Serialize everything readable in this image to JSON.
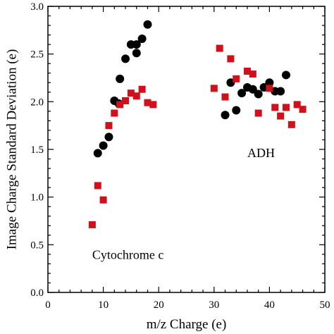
{
  "chart_data": {
    "type": "scatter",
    "title": "",
    "xlabel": "m/z Charge (e)",
    "ylabel": "Image Charge Standard Deviation (e)",
    "xlim": [
      0,
      50
    ],
    "ylim": [
      0.0,
      3.0
    ],
    "x_ticks": [
      0,
      10,
      20,
      30,
      40,
      50
    ],
    "y_ticks": [
      "0.0",
      "0.5",
      "1.0",
      "1.5",
      "2.0",
      "2.5",
      "3.0"
    ],
    "grid": false,
    "legend": "none",
    "annotations": [
      {
        "text": "Cytochrome c",
        "x": 8,
        "y": 0.35
      },
      {
        "text": "ADH",
        "x": 36,
        "y": 1.42
      }
    ],
    "series": [
      {
        "marker": "circle",
        "color": "#000000",
        "points": [
          [
            9,
            1.46
          ],
          [
            10,
            1.54
          ],
          [
            11,
            1.63
          ],
          [
            12,
            2.01
          ],
          [
            12.8,
            1.98
          ],
          [
            13,
            2.24
          ],
          [
            14,
            2.45
          ],
          [
            15,
            2.6
          ],
          [
            16,
            2.51
          ],
          [
            16,
            2.6
          ],
          [
            17,
            2.66
          ],
          [
            18,
            2.81
          ],
          [
            32,
            1.86
          ],
          [
            33,
            2.2
          ],
          [
            34,
            1.91
          ],
          [
            35,
            2.09
          ],
          [
            36,
            2.15
          ],
          [
            37,
            2.13
          ],
          [
            38,
            2.08
          ],
          [
            39,
            2.15
          ],
          [
            40,
            2.2
          ],
          [
            41,
            2.11
          ],
          [
            42,
            2.11
          ],
          [
            43,
            2.28
          ]
        ]
      },
      {
        "marker": "square",
        "color": "#d0101b",
        "points": [
          [
            8,
            0.71
          ],
          [
            9,
            1.12
          ],
          [
            10,
            0.97
          ],
          [
            11,
            1.75
          ],
          [
            12,
            1.88
          ],
          [
            13,
            1.97
          ],
          [
            14,
            2.01
          ],
          [
            15,
            2.09
          ],
          [
            16,
            2.06
          ],
          [
            17,
            2.13
          ],
          [
            18,
            1.99
          ],
          [
            19,
            1.97
          ],
          [
            30,
            2.14
          ],
          [
            31,
            2.56
          ],
          [
            32,
            2.05
          ],
          [
            33,
            2.45
          ],
          [
            34,
            2.24
          ],
          [
            36,
            2.32
          ],
          [
            37,
            2.29
          ],
          [
            38,
            1.88
          ],
          [
            40,
            2.14
          ],
          [
            41,
            1.94
          ],
          [
            42,
            1.85
          ],
          [
            43,
            1.94
          ],
          [
            44,
            1.76
          ],
          [
            45,
            1.97
          ],
          [
            46,
            1.92
          ]
        ]
      }
    ]
  }
}
